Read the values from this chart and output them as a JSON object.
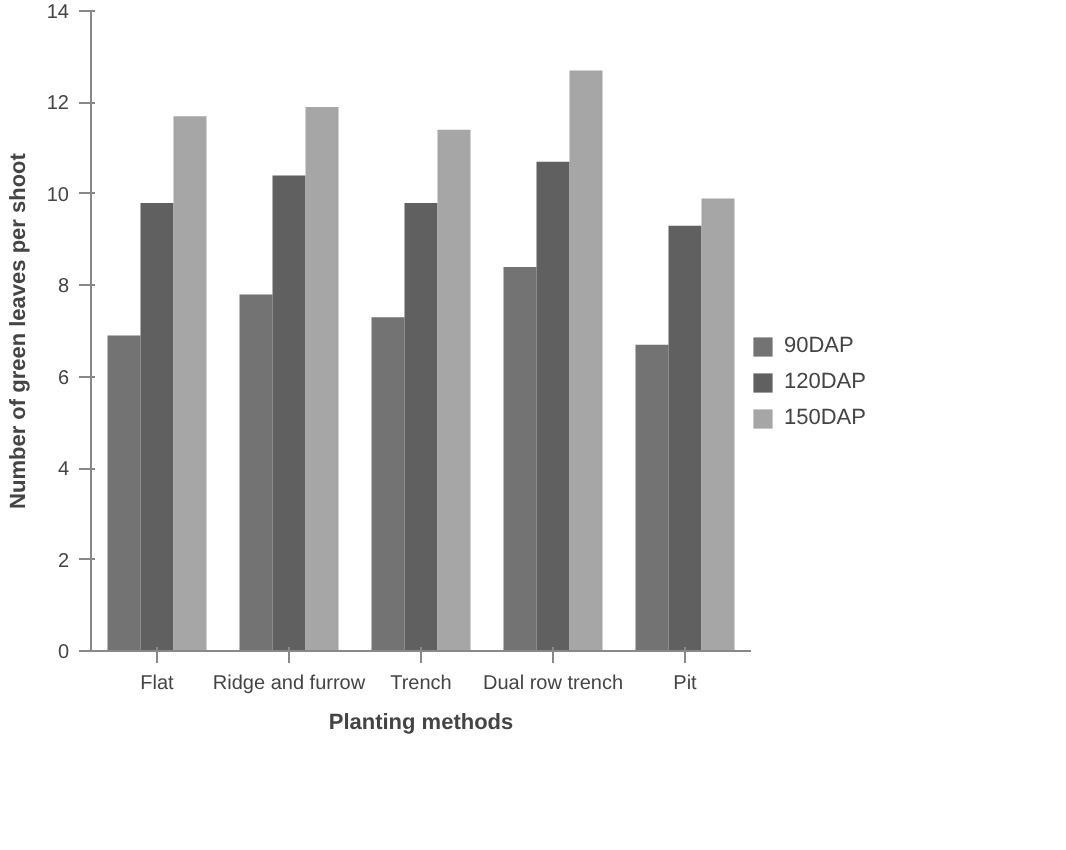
{
  "chart_data": {
    "type": "bar",
    "xlabel": "Planting methods",
    "ylabel": "Number of green leaves per shoot",
    "categories": [
      "Flat",
      "Ridge and furrow",
      "Trench",
      "Dual row trench",
      "Pit"
    ],
    "series": [
      {
        "name": "90DAP",
        "color": "#737373",
        "values": [
          6.9,
          7.8,
          7.3,
          8.4,
          6.7
        ]
      },
      {
        "name": "120DAP",
        "color": "#606060",
        "values": [
          9.8,
          10.4,
          9.8,
          10.7,
          9.3
        ]
      },
      {
        "name": "150DAP",
        "color": "#a6a6a6",
        "values": [
          11.7,
          11.9,
          11.4,
          12.7,
          9.9
        ]
      }
    ],
    "ylim": [
      0,
      14
    ],
    "yticks": [
      0,
      2,
      4,
      6,
      8,
      10,
      12,
      14
    ],
    "grid": false,
    "legend": "right"
  }
}
